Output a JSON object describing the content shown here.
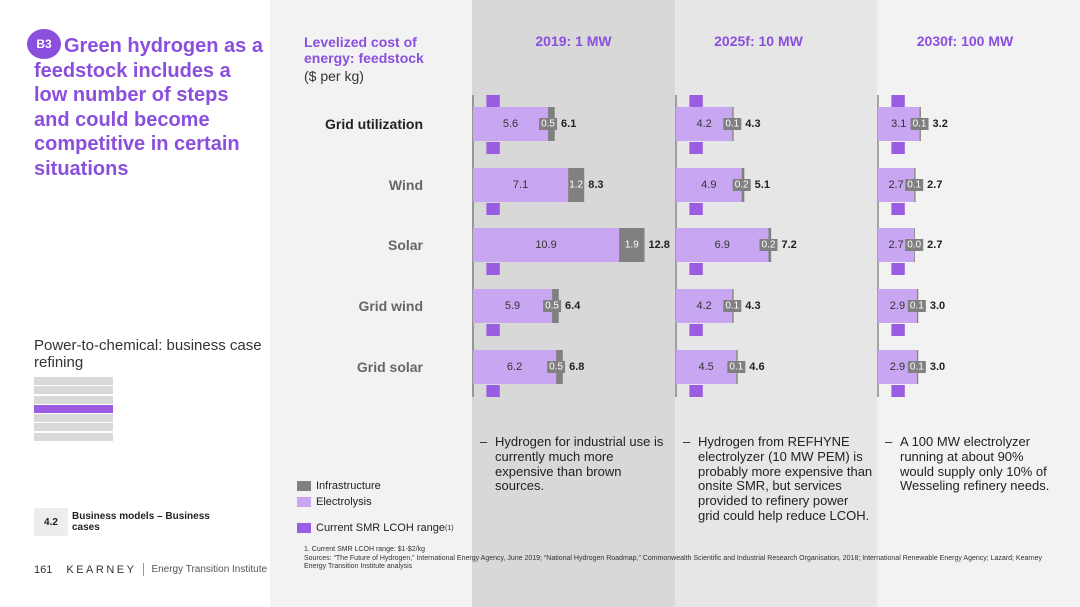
{
  "colors": {
    "accent": "#8a4fdc",
    "infrastructure": "#808080",
    "electrolysis": "#c9a6f2",
    "smr_range": "#9a5ce0"
  },
  "sidebar": {
    "badge": "B3",
    "headline": "Green hydrogen as a feedstock includes a low number of steps and could become competitive in certain situations",
    "sub_heading": "Power-to-chemical: business case refining",
    "nav_count": 7,
    "nav_active_index": 3,
    "chapter_number": "4.2",
    "chapter_title": "Business models – Business cases",
    "page_number": "161",
    "brand": "KEARNEY",
    "institute": "Energy Transition Institute"
  },
  "notes": [
    "Hydrogen for industrial use is currently much more expensive than brown sources.",
    "Hydrogen from REFHYNE electrolyzer (10 MW PEM) is probably more expensive than onsite SMR, but services provided to refinery power grid could help reduce LCOH.",
    "A 100 MW electrolyzer running at about 90% would supply only 10% of Wesseling refinery needs."
  ],
  "legend": {
    "infrastructure": "Infrastructure",
    "electrolysis": "Electrolysis",
    "smr_range": "Current SMR LCOH range",
    "smr_range_sup": "(1)"
  },
  "footnotes": [
    "1. Current SMR LCOH range: $1-$2/kg",
    "Sources: “The Future of Hydrogen,” International Energy Agency, June 2019; “National Hydrogen Roadmap,” Commonwealth Scientific and Industrial Research Organisation, 2018; International Renewable Energy Agency; Lazard; Kearney Energy Transition Institute analysis"
  ],
  "chart_data": {
    "type": "bar",
    "orientation": "horizontal-stacked",
    "title": "Levelized cost of energy: feedstock",
    "unit": "($ per kg)",
    "categories": [
      "Grid utilization",
      "Wind",
      "Solar",
      "Grid wind",
      "Grid solar"
    ],
    "smr_range": [
      1,
      2
    ],
    "panels": [
      {
        "title": "2019: 1 MW",
        "series": [
          {
            "name": "Electrolysis",
            "values": [
              5.6,
              7.1,
              10.9,
              5.9,
              6.2
            ],
            "labels": [
              "5.6",
              "7.1",
              "10.9",
              "5.9",
              "6.2"
            ]
          },
          {
            "name": "Infrastructure",
            "values": [
              0.5,
              1.2,
              1.9,
              0.5,
              0.5
            ],
            "labels": [
              "0.5",
              "1.2",
              "1.9",
              "0.5",
              "0.5"
            ]
          }
        ],
        "totals": [
          "6.1",
          "8.3",
          "12.8",
          "6.4",
          "6.8"
        ]
      },
      {
        "title": "2025f: 10 MW",
        "series": [
          {
            "name": "Electrolysis",
            "values": [
              4.2,
              4.9,
              6.9,
              4.2,
              4.5
            ],
            "labels": [
              "4.2",
              "4.9",
              "6.9",
              "4.2",
              "4.5"
            ]
          },
          {
            "name": "Infrastructure",
            "values": [
              0.1,
              0.2,
              0.2,
              0.1,
              0.1
            ],
            "labels": [
              "0.1",
              "0.2",
              "0.2",
              "0.1",
              "0.1"
            ]
          }
        ],
        "totals": [
          "4.3",
          "5.1",
          "7.2",
          "4.3",
          "4.6"
        ]
      },
      {
        "title": "2030f: 100 MW",
        "series": [
          {
            "name": "Electrolysis",
            "values": [
              3.1,
              2.7,
              2.7,
              2.9,
              2.9
            ],
            "labels": [
              "3.1",
              "2.7",
              "2.7",
              "2.9",
              "2.9"
            ]
          },
          {
            "name": "Infrastructure",
            "values": [
              0.1,
              0.1,
              0.0,
              0.1,
              0.1
            ],
            "labels": [
              "0.1",
              "0.1",
              "0.0",
              "0.1",
              "0.1"
            ]
          }
        ],
        "totals": [
          "3.2",
          "2.7",
          "2.7",
          "3.0",
          "3.0"
        ]
      }
    ]
  }
}
